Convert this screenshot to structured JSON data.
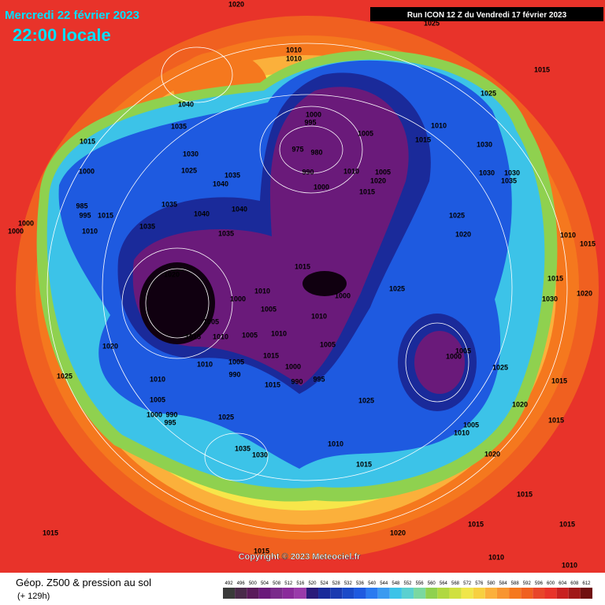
{
  "header": {
    "date": "Mercredi 22 février 2023",
    "time": "22:00 locale",
    "run": "Run ICON 12 Z du Vendredi 17 février 2023"
  },
  "copyright": "Copyright © 2023 Meteociel.fr",
  "footer": {
    "title": "Géop. Z500 & pression au sol",
    "lead": "(+ 129h)"
  },
  "scale": {
    "labels": [
      492,
      496,
      500,
      504,
      508,
      512,
      516,
      520,
      524,
      528,
      532,
      536,
      540,
      544,
      548,
      552,
      556,
      560,
      564,
      568,
      572,
      576,
      580,
      584,
      588,
      592,
      596,
      600,
      604,
      608,
      612
    ],
    "colors": [
      "#3a3a3a",
      "#4a2a4a",
      "#5a1a5a",
      "#6a1a7a",
      "#7a2a8a",
      "#8a2a9a",
      "#9a3aaa",
      "#2a1a7a",
      "#1a2a9a",
      "#1a3ab0",
      "#1a4ac8",
      "#1e5ae0",
      "#2a7af0",
      "#3a9af0",
      "#3cc3e8",
      "#5ad0d0",
      "#7ad8a0",
      "#8fd14f",
      "#b0d840",
      "#d0e040",
      "#f0e64a",
      "#f7d040",
      "#fbb03b",
      "#f89530",
      "#f5781e",
      "#f06020",
      "#e8462a",
      "#e8332a",
      "#c82020",
      "#a01818",
      "#701010"
    ]
  },
  "isobar_labels": [
    "1020",
    "1025",
    "1010",
    "1010",
    "1015",
    "1040",
    "1035",
    "1015",
    "1030",
    "1000",
    "995",
    "975",
    "980",
    "1005",
    "1010",
    "1015",
    "1030",
    "1025",
    "1000",
    "1025",
    "1035",
    "1040",
    "990",
    "1010",
    "1005",
    "1020",
    "1030",
    "1030",
    "1035",
    "1000",
    "985",
    "995",
    "1015",
    "1010",
    "1000",
    "1000",
    "1035",
    "1040",
    "1040",
    "1035",
    "1015",
    "1025",
    "1020",
    "1010",
    "1015",
    "1035",
    "1020",
    "1015",
    "1000",
    "1010",
    "1000",
    "1025",
    "1015",
    "1020",
    "1005",
    "1010",
    "1005",
    "1015",
    "1010",
    "1005",
    "1010",
    "1015",
    "1005",
    "1020",
    "1000",
    "1005",
    "1010",
    "1005",
    "1000",
    "990",
    "990",
    "995",
    "1015",
    "1025",
    "1010",
    "1005",
    "1000",
    "990",
    "995",
    "1025",
    "1025",
    "1035",
    "1030",
    "1010",
    "1005",
    "1010",
    "1020",
    "1015",
    "1015",
    "1015",
    "1020",
    "1015",
    "1010",
    "1010",
    "1015",
    "1020",
    "1015",
    "1015",
    "1015",
    "1025",
    "1030"
  ]
}
